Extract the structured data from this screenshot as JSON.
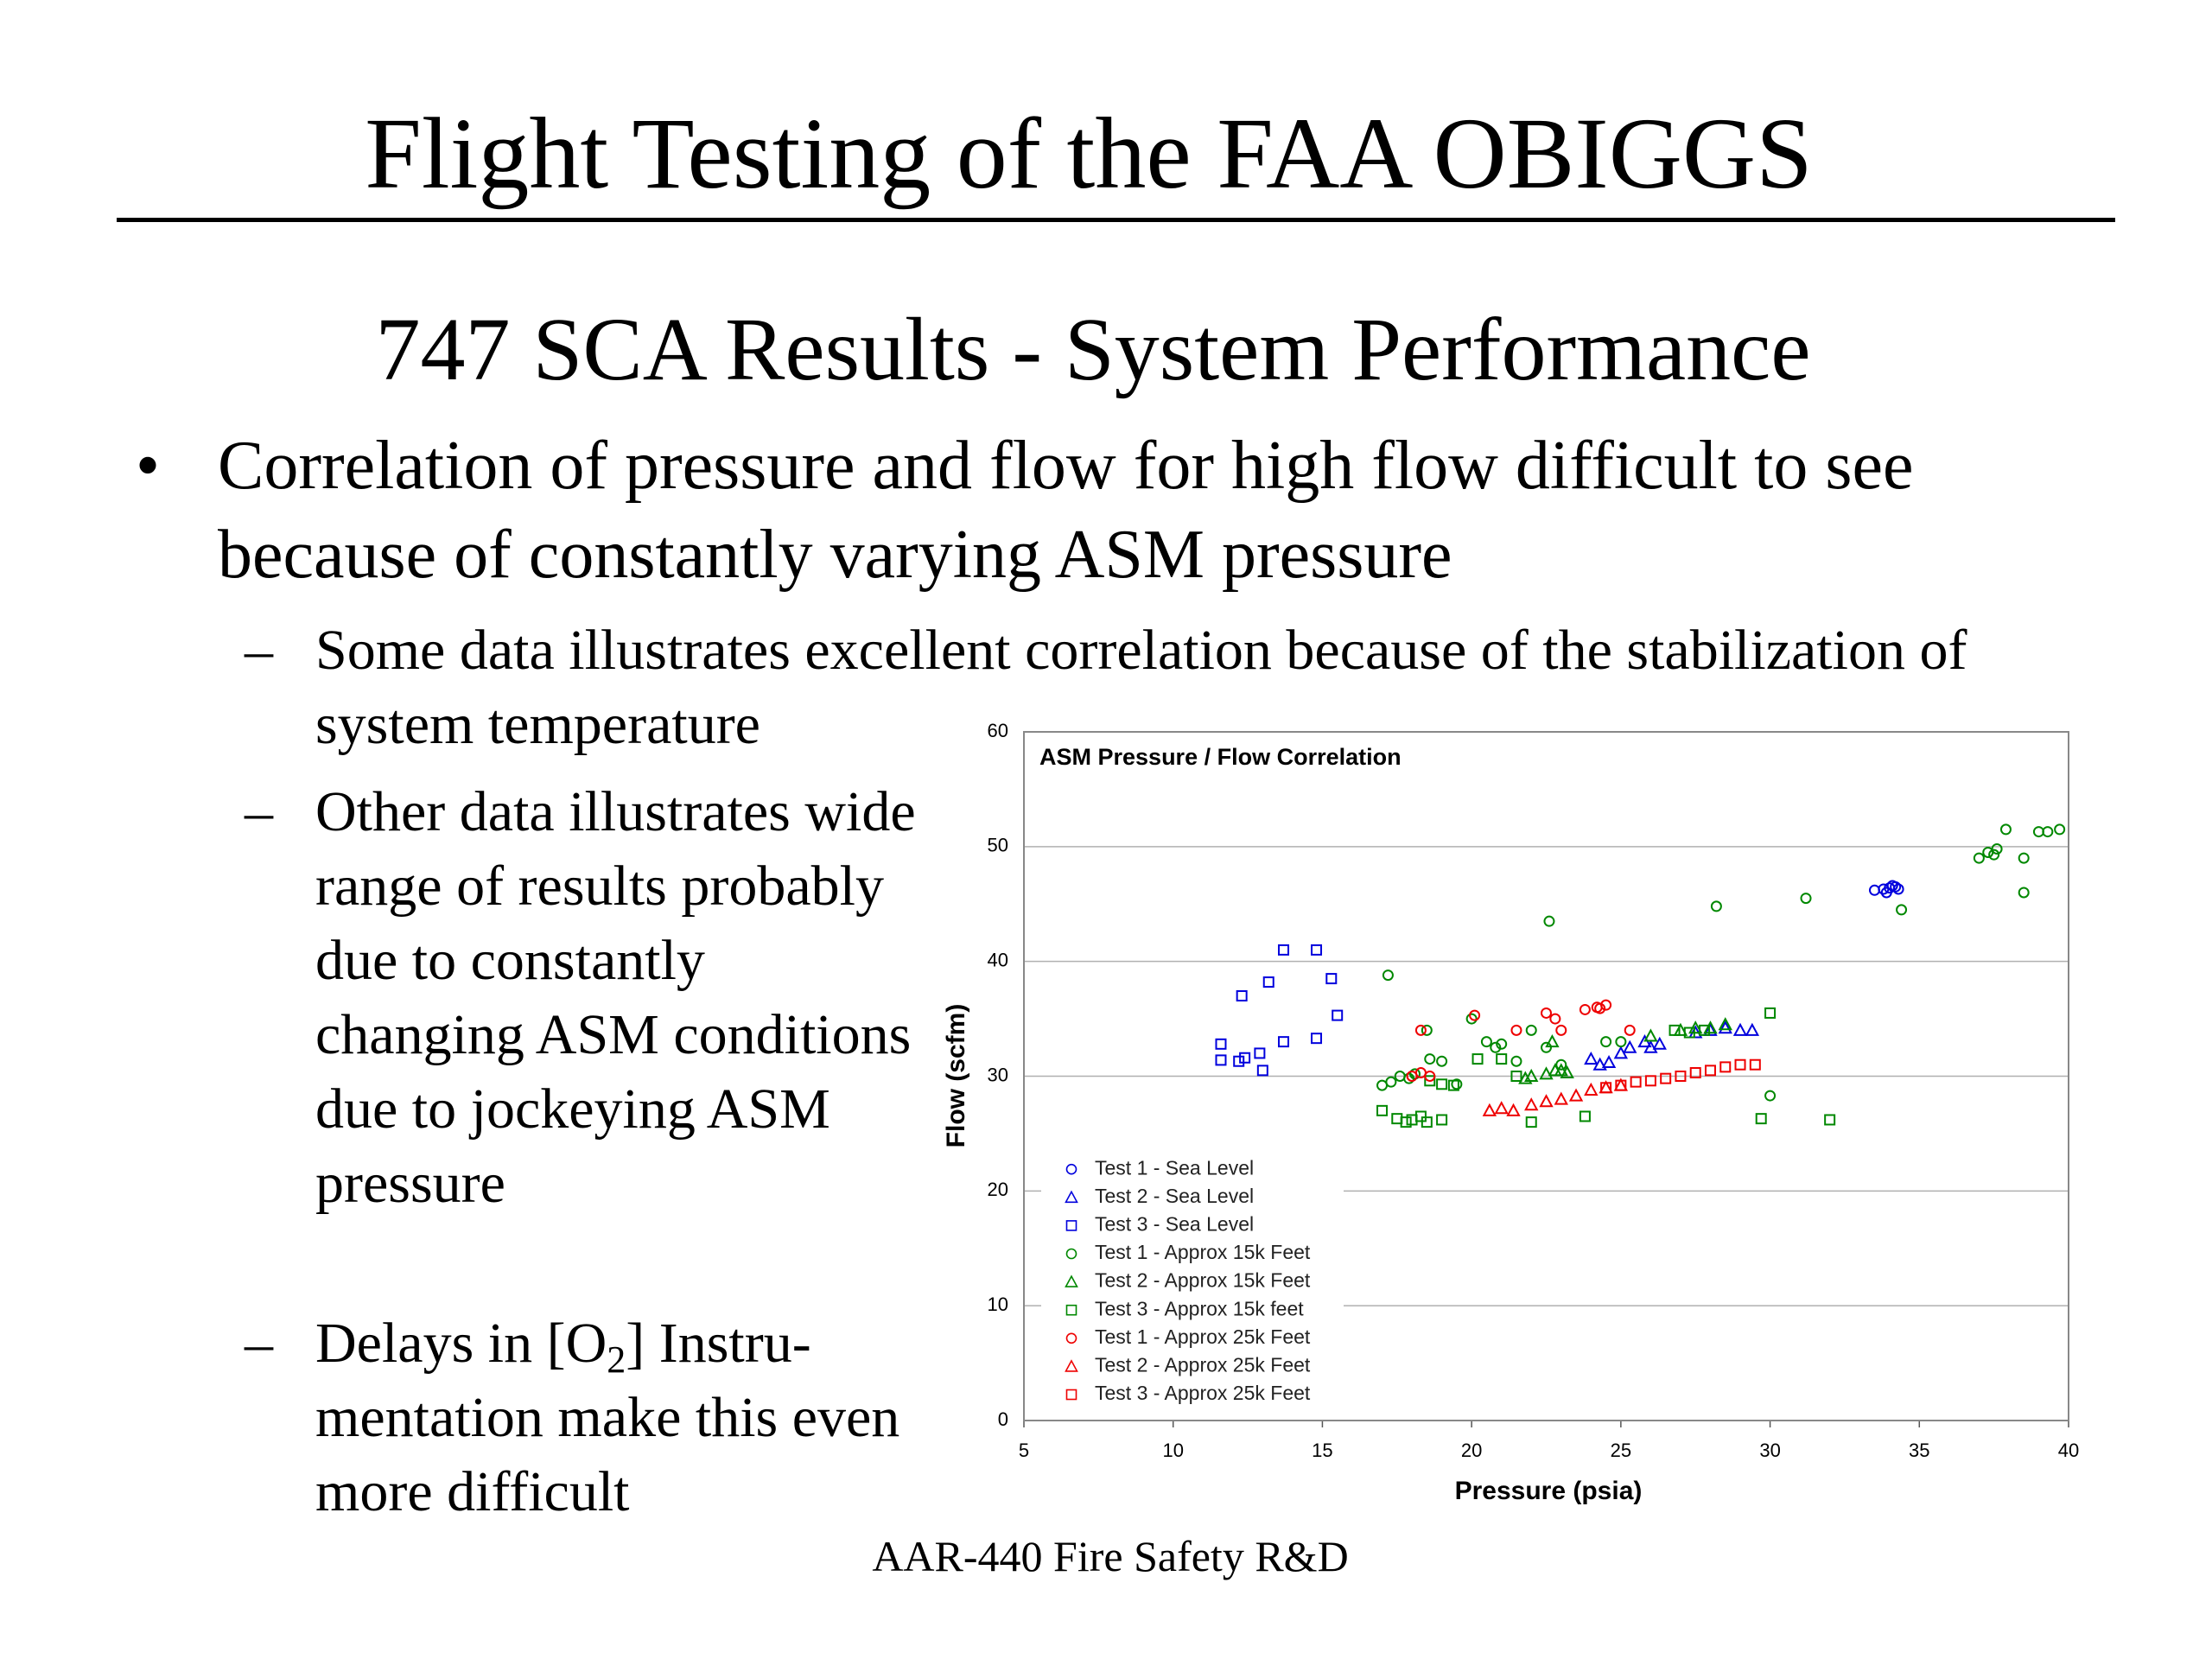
{
  "slide": {
    "title": "Flight Testing of the FAA OBIGGS",
    "subtitle": "747 SCA Results -  System Performance",
    "bullet": "Correlation of pressure and flow for high flow difficult to see because of constantly varying ASM pressure",
    "sub_bullets": [
      {
        "text": "Some data illustrates excellent correlation because of the stabilization of system temperature"
      },
      {
        "text": "Other data illustrates wide range of results probably due to constantly changing ASM conditions due to jockeying ASM pressure"
      },
      {
        "parts": [
          "Delays in [O",
          "2",
          "] Instru-mentation make this even more difficult"
        ]
      }
    ],
    "footer": "AAR-440 Fire Safety R&D"
  },
  "chart_data": {
    "type": "scatter",
    "title": "ASM Pressure / Flow Correlation",
    "x_label": "Pressure (psia)",
    "y_label": "Flow (scfm)",
    "xlim": [
      5,
      40
    ],
    "xticks": [
      5,
      10,
      15,
      20,
      25,
      30,
      35,
      40
    ],
    "ylim": [
      0,
      60
    ],
    "yticks": [
      0,
      10,
      20,
      30,
      40,
      50,
      60
    ],
    "grid": true,
    "legend": "lower left",
    "series": [
      {
        "name": "Test 1 - Sea Level",
        "color": "#0000dd",
        "marker": "circle",
        "x": [
          33.5,
          33.8,
          34.0,
          34.2,
          34.3,
          33.9,
          34.1
        ],
        "y": [
          46.2,
          46.3,
          46.4,
          46.5,
          46.3,
          46.0,
          46.6
        ]
      },
      {
        "name": "Test 2 - Sea Level",
        "color": "#0000dd",
        "marker": "triangle",
        "x": [
          24.0,
          24.3,
          24.6,
          25.0,
          25.3,
          25.8,
          26.0,
          26.3,
          27.5,
          28.0,
          28.5,
          29.0,
          29.4
        ],
        "y": [
          31.5,
          31.0,
          31.2,
          32.0,
          32.5,
          33.0,
          32.5,
          32.8,
          33.8,
          34.0,
          34.2,
          34.0,
          34.0
        ]
      },
      {
        "name": "Test 3 - Sea Level",
        "color": "#0000dd",
        "marker": "square",
        "x": [
          11.6,
          11.6,
          12.2,
          12.4,
          12.3,
          13.0,
          12.9,
          13.2,
          13.7,
          13.7,
          14.8,
          14.8,
          15.3,
          15.5
        ],
        "y": [
          32.8,
          31.4,
          31.3,
          31.6,
          37.0,
          30.5,
          32.0,
          38.2,
          41.0,
          33.0,
          41.0,
          33.3,
          38.5,
          35.3
        ]
      },
      {
        "name": "Test 1 - Approx 15k Feet",
        "color": "#008800",
        "marker": "circle",
        "x": [
          17.0,
          17.3,
          17.6,
          17.9,
          18.1,
          17.2,
          18.5,
          18.6,
          19.0,
          19.5,
          20.0,
          20.5,
          20.8,
          21.0,
          21.5,
          22.0,
          22.5,
          22.6,
          23.0,
          24.5,
          25.0,
          28.2,
          30.0,
          31.2,
          34.4,
          37.0,
          37.3,
          37.5,
          37.6,
          37.9,
          38.5,
          38.5,
          39.0,
          39.3,
          39.7
        ],
        "y": [
          29.2,
          29.5,
          30.0,
          29.8,
          30.2,
          38.8,
          34.0,
          31.5,
          31.3,
          29.3,
          35.0,
          33.0,
          32.5,
          32.8,
          31.3,
          34.0,
          32.5,
          43.5,
          31.0,
          33.0,
          33.0,
          44.8,
          28.3,
          45.5,
          44.5,
          49.0,
          49.5,
          49.3,
          49.8,
          51.5,
          49.0,
          46.0,
          51.3,
          51.3,
          51.5
        ]
      },
      {
        "name": "Test 2 - Approx 15k Feet",
        "color": "#008800",
        "marker": "triangle",
        "x": [
          21.8,
          22.0,
          22.5,
          22.8,
          23.0,
          23.2,
          22.7,
          27.0,
          27.5,
          28.0,
          28.5,
          26.0
        ],
        "y": [
          29.8,
          30.0,
          30.2,
          30.5,
          30.5,
          30.3,
          33.0,
          34.0,
          34.2,
          34.2,
          34.5,
          33.5
        ]
      },
      {
        "name": "Test 3 - Approx 15k feet",
        "color": "#008800",
        "marker": "square",
        "x": [
          17.0,
          17.5,
          17.8,
          18.0,
          18.3,
          18.5,
          19.0,
          18.6,
          19.0,
          19.4,
          21.0,
          21.5,
          22.0,
          23.8,
          26.8,
          27.3,
          27.8,
          29.7,
          30.0,
          32.0,
          20.2
        ],
        "y": [
          27.0,
          26.3,
          26.0,
          26.2,
          26.5,
          26.0,
          26.2,
          29.6,
          29.3,
          29.2,
          31.5,
          30.0,
          26.0,
          26.5,
          34.0,
          33.8,
          34.0,
          26.3,
          35.5,
          26.2,
          31.5
        ]
      },
      {
        "name": "Test 1 - Approx 25k Feet",
        "color": "#ee0000",
        "marker": "circle",
        "x": [
          18.0,
          18.3,
          18.6,
          18.3,
          20.1,
          21.5,
          22.5,
          22.8,
          23.0,
          23.8,
          24.2,
          24.3,
          24.5,
          25.3
        ],
        "y": [
          30.0,
          30.3,
          30.0,
          34.0,
          35.3,
          34.0,
          35.5,
          35.0,
          34.0,
          35.8,
          36.0,
          35.9,
          36.2,
          34.0
        ]
      },
      {
        "name": "Test 2 - Approx 25k Feet",
        "color": "#ee0000",
        "marker": "triangle",
        "x": [
          20.6,
          21.0,
          21.4,
          22.0,
          22.5,
          23.0,
          23.5,
          24.0,
          24.5,
          25.0
        ],
        "y": [
          27.0,
          27.2,
          27.0,
          27.5,
          27.8,
          28.0,
          28.3,
          28.8,
          29.0,
          29.2
        ]
      },
      {
        "name": "Test 3 - Approx 25k Feet",
        "color": "#ee0000",
        "marker": "square",
        "x": [
          24.5,
          25.0,
          25.5,
          26.0,
          26.5,
          27.0,
          27.5,
          28.0,
          28.5,
          29.0,
          29.5
        ],
        "y": [
          29.0,
          29.2,
          29.5,
          29.6,
          29.8,
          30.0,
          30.3,
          30.5,
          30.8,
          31.0,
          31.0
        ]
      }
    ]
  }
}
